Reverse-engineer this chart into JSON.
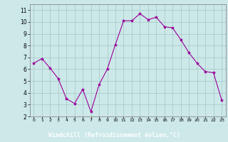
{
  "x": [
    0,
    1,
    2,
    3,
    4,
    5,
    6,
    7,
    8,
    9,
    10,
    11,
    12,
    13,
    14,
    15,
    16,
    17,
    18,
    19,
    20,
    21,
    22,
    23
  ],
  "y": [
    6.5,
    6.9,
    6.1,
    5.2,
    3.5,
    3.1,
    4.3,
    2.4,
    4.7,
    6.0,
    8.1,
    10.1,
    10.1,
    10.7,
    10.2,
    10.4,
    9.6,
    9.5,
    8.5,
    7.4,
    6.5,
    5.8,
    5.7,
    3.4
  ],
  "line_color": "#990099",
  "marker": "*",
  "marker_size": 3,
  "bg_color": "#cce8e8",
  "grid_color": "#aacccc",
  "xlabel": "Windchill (Refroidissement éolien,°C)",
  "xlabel_color": "#ffffff",
  "xlabel_bg": "#880088",
  "ylabel_ticks": [
    2,
    3,
    4,
    5,
    6,
    7,
    8,
    9,
    10,
    11
  ],
  "xtick_labels": [
    "0",
    "1",
    "2",
    "3",
    "4",
    "5",
    "6",
    "7",
    "8",
    "9",
    "10",
    "11",
    "12",
    "13",
    "14",
    "15",
    "16",
    "17",
    "18",
    "19",
    "20",
    "21",
    "22",
    "23"
  ],
  "xlim": [
    -0.5,
    23.5
  ],
  "ylim": [
    2,
    11.5
  ]
}
